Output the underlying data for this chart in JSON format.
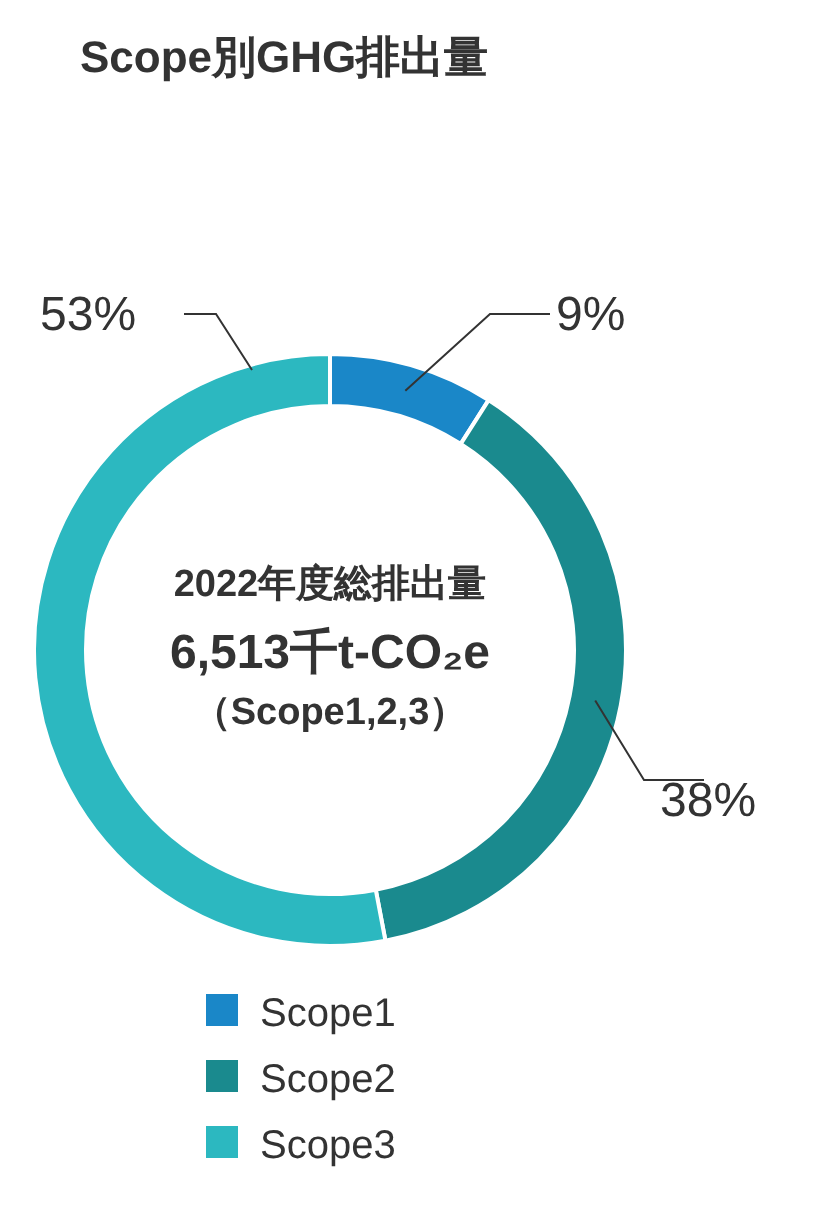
{
  "chart_data": {
    "type": "donut",
    "title": "Scope別GHG排出量",
    "categories": [
      "Scope1",
      "Scope2",
      "Scope3"
    ],
    "values": [
      9,
      38,
      53
    ],
    "colors": [
      "#1a87c8",
      "#1a8a8e",
      "#2cb8c0"
    ],
    "value_labels": [
      "9%",
      "38%",
      "53%"
    ],
    "annotations": [
      "2022年度総排出量",
      "6,513千t-CO₂e",
      "（Scope1,2,3）"
    ],
    "legend": "bottom"
  }
}
